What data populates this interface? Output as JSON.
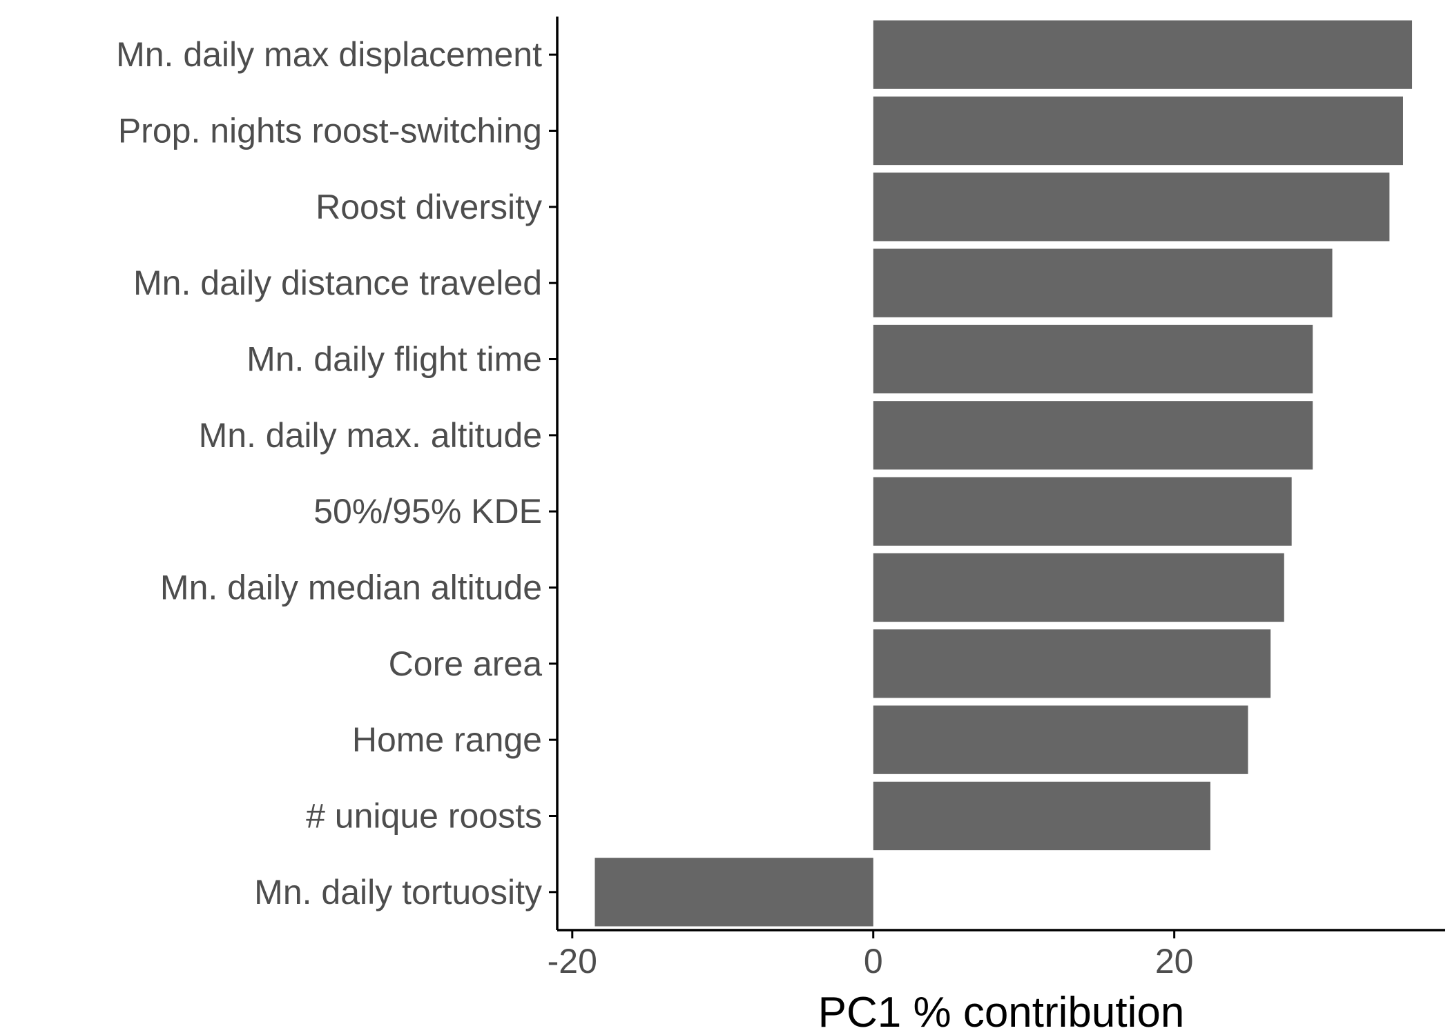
{
  "chart_data": {
    "type": "bar",
    "orientation": "horizontal",
    "title": "",
    "xlabel": "PC1 % contribution",
    "ylabel": "",
    "categories": [
      "Mn. daily max displacement",
      "Prop. nights roost-switching",
      "Roost diversity",
      "Mn. daily distance traveled",
      "Mn. daily flight time",
      "Mn. daily max. altitude",
      "50%/95% KDE",
      "Mn. daily median altitude",
      "Core area",
      "Home range",
      "# unique roosts",
      "Mn. daily tortuosity"
    ],
    "values": [
      35.8,
      35.2,
      34.3,
      30.5,
      29.2,
      29.2,
      27.8,
      27.3,
      26.4,
      24.9,
      22.4,
      -18.5
    ],
    "xlim": [
      -21,
      38
    ],
    "xticks": [
      -20,
      0,
      20
    ],
    "xtick_labels": [
      "-20",
      "0",
      "20"
    ],
    "grid": false,
    "legend": "none",
    "colors": {
      "bar": "#666666",
      "axis": "#000000",
      "label": "#4d4d4d"
    }
  }
}
